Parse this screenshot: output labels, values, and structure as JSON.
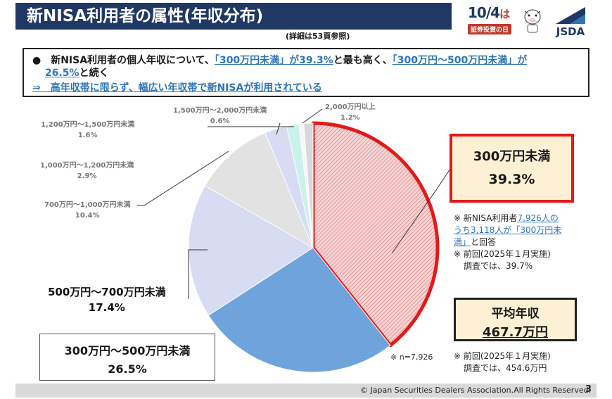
{
  "header": {
    "title": "新NISA利用者の属性(年収分布)",
    "sub_note": "(詳細は53頁参照)",
    "badge_date": "10/4",
    "badge_ha": "は",
    "badge_sub": "証券投資の日",
    "logo_text": "JSDA"
  },
  "summary": {
    "l1_a": "●　新NISA利用者の個人年収について、",
    "l1_b": "「300万円未満」が39.3%",
    "l1_c": "と最も高く、",
    "l1_d": "「300万円～500万円未満」が",
    "l2_a": "26.5%",
    "l2_b": "と続く",
    "l3": "⇒　高年収帯に限らず、幅広い年収帯で新NISAが利用されている"
  },
  "chart_data": {
    "type": "pie",
    "n_label": "※ n=7,926",
    "slices": [
      {
        "label": "300万円未満",
        "value": 39.3,
        "display": "39.3%",
        "color": "#f2c4c4"
      },
      {
        "label": "300万円～500万円未満",
        "value": 26.5,
        "display": "26.5%",
        "color": "#6fa3dc"
      },
      {
        "label": "500万円～700万円未満",
        "value": 17.4,
        "display": "17.4%",
        "color": "#d7dcf3"
      },
      {
        "label": "700万円～1,000万円未満",
        "value": 10.4,
        "display": "10.4%",
        "color": "#e2e2e2"
      },
      {
        "label": "1,000万円～1,200万円未満",
        "value": 2.9,
        "display": "2.9%",
        "color": "#d7dcf3"
      },
      {
        "label": "1,200万円～1,500万円未満",
        "value": 1.6,
        "display": "1.6%",
        "color": "#c9f2ea"
      },
      {
        "label": "1,500万円～2,000万円未満",
        "value": 0.6,
        "display": "0.6%",
        "color": "#f7f7f7"
      },
      {
        "label": "2,000万円以上",
        "value": 1.2,
        "display": "1.2%",
        "color": "#d9d9d9"
      }
    ]
  },
  "callouts": {
    "top_label": "300万円未満",
    "top_value": "39.3%",
    "note1_a": "※ 新NISA利用者",
    "note1_b": "7,926人の",
    "note1_c": "うち3,118人が「300万円未",
    "note1_d": "満」",
    "note1_e": "と回答",
    "note1_f": "※ 前回(2025年１月実施)",
    "note1_g": "調査では、39.7%",
    "avg_label": "平均年収",
    "avg_value": "467.7万円",
    "note2_a": "※ 前回(2025年１月実施)",
    "note2_b": "調査では、454.6万円"
  },
  "footer": {
    "copyright": "© Japan Securities Dealers Association.All Rights Reserved.",
    "page": "3"
  }
}
